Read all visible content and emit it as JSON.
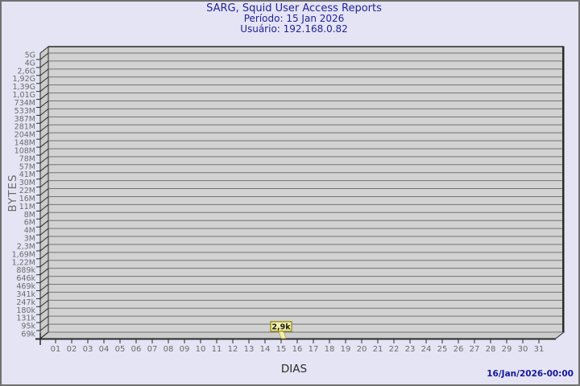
{
  "header": {
    "title": "SARG, Squid User Access Reports",
    "period": "Período: 15 Jan 2026",
    "user": "Usuário: 192.168.0.82"
  },
  "footer": {
    "timestamp": "16/Jan/2026-00:00"
  },
  "colors": {
    "background": "#e4e4f4",
    "frame_border": "#707070",
    "title_text": "#22229a",
    "plot_fill": "#d2d2d2",
    "wall_fill": "#cbcbcb",
    "grid_line": "#737373",
    "axis_line": "#2a2a2a",
    "tick_text": "#6b6b6b",
    "flag_fill": "#f4f0a8",
    "flag_border": "#8a8400",
    "flag_text": "#1a1a1a"
  },
  "chart_data": {
    "type": "bar",
    "title": "SARG, Squid User Access Reports",
    "subtitle_period": "Período: 15 Jan 2026",
    "subtitle_user": "Usuário: 192.168.0.82",
    "xlabel": "DIAS",
    "ylabel": "BYTES",
    "y_scale": "log",
    "grid": true,
    "y_tick_labels": [
      "5G",
      "4G",
      "2,6G",
      "1,92G",
      "1,39G",
      "1,01G",
      "734M",
      "533M",
      "387M",
      "281M",
      "204M",
      "148M",
      "108M",
      "78M",
      "57M",
      "41M",
      "30M",
      "22M",
      "16M",
      "11M",
      "8M",
      "6M",
      "4M",
      "3M",
      "2,3M",
      "1,69M",
      "1,22M",
      "889k",
      "646k",
      "469k",
      "341k",
      "247k",
      "180k",
      "131k",
      "95k",
      "69k"
    ],
    "categories": [
      "01",
      "02",
      "03",
      "04",
      "05",
      "06",
      "07",
      "08",
      "09",
      "10",
      "11",
      "12",
      "13",
      "14",
      "15",
      "16",
      "17",
      "18",
      "19",
      "20",
      "21",
      "22",
      "23",
      "24",
      "25",
      "26",
      "27",
      "28",
      "29",
      "30",
      "31"
    ],
    "values": [
      0,
      0,
      0,
      0,
      0,
      0,
      0,
      0,
      0,
      0,
      0,
      0,
      0,
      0,
      2900,
      0,
      0,
      0,
      0,
      0,
      0,
      0,
      0,
      0,
      0,
      0,
      0,
      0,
      0,
      0,
      0
    ],
    "annotations": [
      {
        "category": "15",
        "label": "2,9k",
        "value_bytes": 2900
      }
    ]
  }
}
